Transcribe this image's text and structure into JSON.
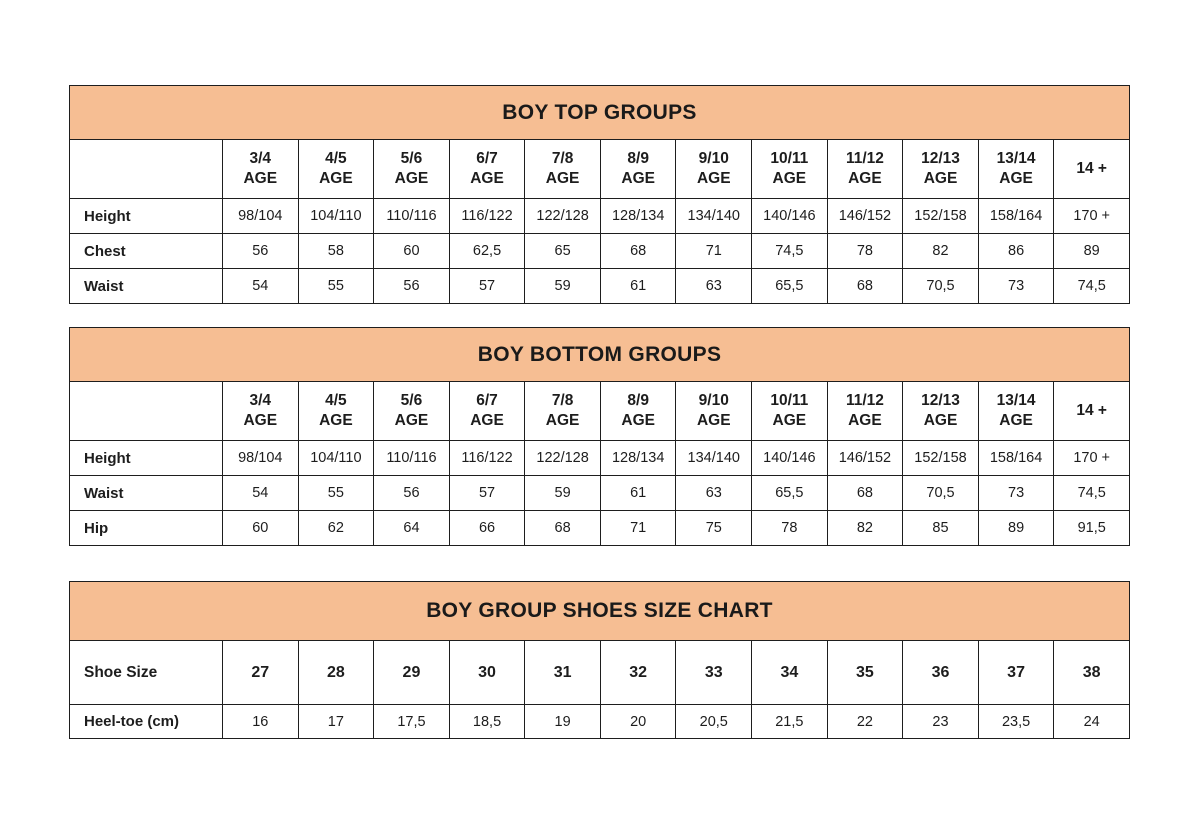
{
  "colors": {
    "band_bg": "#F6BE93",
    "border": "#1e1e1e",
    "text": "#1d1d1d",
    "page_bg": "#ffffff"
  },
  "tables": [
    {
      "title": "BOY TOP GROUPS",
      "age_headers": [
        [
          "3/4",
          "AGE"
        ],
        [
          "4/5",
          "AGE"
        ],
        [
          "5/6",
          "AGE"
        ],
        [
          "6/7",
          "AGE"
        ],
        [
          "7/8",
          "AGE"
        ],
        [
          "8/9",
          "AGE"
        ],
        [
          "9/10",
          "AGE"
        ],
        [
          "10/11",
          "AGE"
        ],
        [
          "11/12",
          "AGE"
        ],
        [
          "12/13",
          "AGE"
        ],
        [
          "13/14",
          "AGE"
        ],
        [
          "14 +"
        ]
      ],
      "rows": [
        {
          "label": "Height",
          "values": [
            "98/104",
            "104/110",
            "110/116",
            "116/122",
            "122/128",
            "128/134",
            "134/140",
            "140/146",
            "146/152",
            "152/158",
            "158/164",
            "170 +"
          ]
        },
        {
          "label": "Chest",
          "values": [
            "56",
            "58",
            "60",
            "62,5",
            "65",
            "68",
            "71",
            "74,5",
            "78",
            "82",
            "86",
            "89"
          ]
        },
        {
          "label": "Waist",
          "values": [
            "54",
            "55",
            "56",
            "57",
            "59",
            "61",
            "63",
            "65,5",
            "68",
            "70,5",
            "73",
            "74,5"
          ]
        }
      ]
    },
    {
      "title": "BOY BOTTOM GROUPS",
      "age_headers": [
        [
          "3/4",
          "AGE"
        ],
        [
          "4/5",
          "AGE"
        ],
        [
          "5/6",
          "AGE"
        ],
        [
          "6/7",
          "AGE"
        ],
        [
          "7/8",
          "AGE"
        ],
        [
          "8/9",
          "AGE"
        ],
        [
          "9/10",
          "AGE"
        ],
        [
          "10/11",
          "AGE"
        ],
        [
          "11/12",
          "AGE"
        ],
        [
          "12/13",
          "AGE"
        ],
        [
          "13/14",
          "AGE"
        ],
        [
          "14 +"
        ]
      ],
      "rows": [
        {
          "label": "Height",
          "values": [
            "98/104",
            "104/110",
            "110/116",
            "116/122",
            "122/128",
            "128/134",
            "134/140",
            "140/146",
            "146/152",
            "152/158",
            "158/164",
            "170 +"
          ]
        },
        {
          "label": "Waist",
          "values": [
            "54",
            "55",
            "56",
            "57",
            "59",
            "61",
            "63",
            "65,5",
            "68",
            "70,5",
            "73",
            "74,5"
          ]
        },
        {
          "label": "Hip",
          "values": [
            "60",
            "62",
            "64",
            "66",
            "68",
            "71",
            "75",
            "78",
            "82",
            "85",
            "89",
            "91,5"
          ]
        }
      ]
    },
    {
      "title": "BOY GROUP SHOES SIZE CHART",
      "age_headers": null,
      "rows": [
        {
          "label": "Shoe Size",
          "emph": true,
          "values": [
            "27",
            "28",
            "29",
            "30",
            "31",
            "32",
            "33",
            "34",
            "35",
            "36",
            "37",
            "38"
          ]
        },
        {
          "label": "Heel-toe (cm)",
          "emph": false,
          "values": [
            "16",
            "17",
            "17,5",
            "18,5",
            "19",
            "20",
            "20,5",
            "21,5",
            "22",
            "23",
            "23,5",
            "24"
          ]
        }
      ]
    }
  ]
}
